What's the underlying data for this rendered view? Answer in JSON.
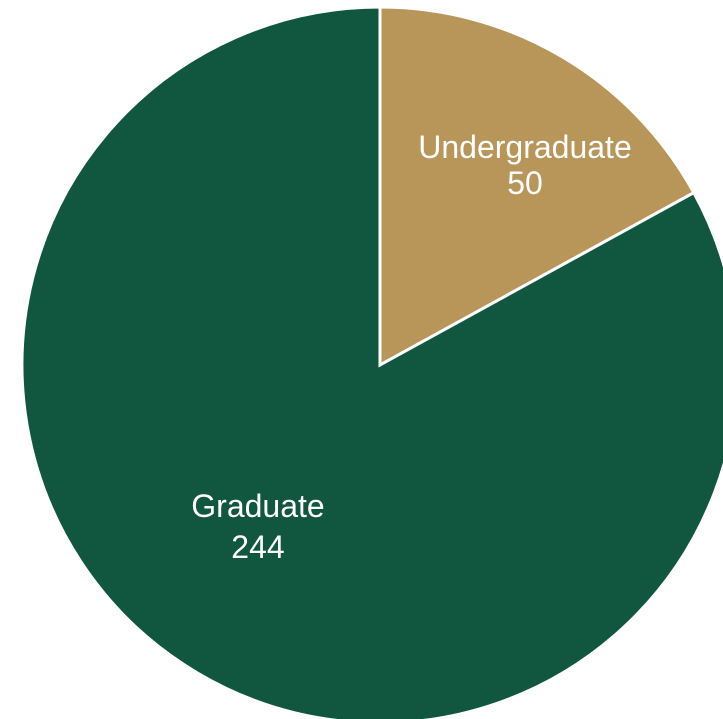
{
  "chart_data": {
    "type": "pie",
    "categories": [
      "Undergraduate",
      "Graduate"
    ],
    "values": [
      50,
      244
    ],
    "value_labels": [
      "50",
      "244"
    ],
    "colors": [
      "#b8965a",
      "#115740"
    ],
    "start": "top",
    "direction": "clockwise"
  },
  "colors": {
    "background": "#ffffff",
    "slice_border": "#ffffff",
    "label_text": "#ffffff"
  }
}
